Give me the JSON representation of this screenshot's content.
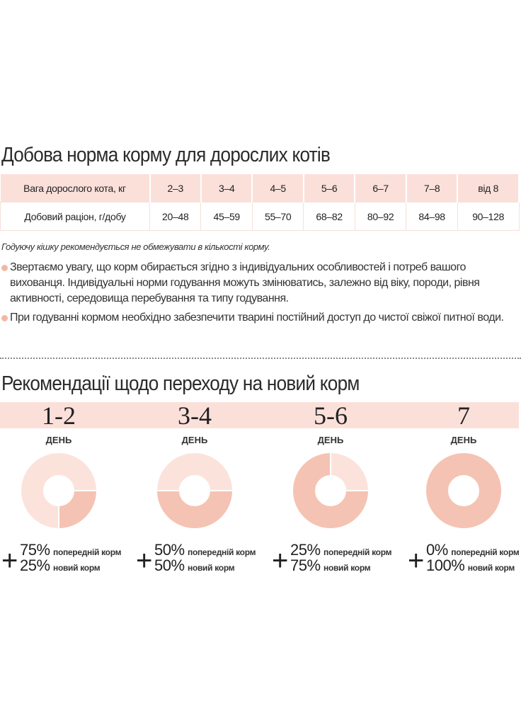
{
  "section1": {
    "title": "Добова норма корму для дорослих котів",
    "table": {
      "row_header_weight": "Вага дорослого кота, кг",
      "row_header_ration": "Добовий раціон, г/добу",
      "weights": [
        "2–3",
        "3–4",
        "4–5",
        "5–6",
        "6–7",
        "7–8",
        "від 8"
      ],
      "rations": [
        "20–48",
        "45–59",
        "55–70",
        "68–82",
        "80–92",
        "84–98",
        "90–128"
      ]
    },
    "note": "Годуючу кішку рекомендується не обмежувати в кількості корму.",
    "bullets": [
      "Звертаємо увагу, що корм обирається згідно з індивідуальних особливостей і потреб вашого вихованця. Індивідуальні норми годування можуть змінюватись, залежно від віку, породи, рівня активності, середовища перебування та типу годування.",
      "При годуванні кормом необхідно забезпечити тварині постійний доступ до чистої свіжої питної води."
    ]
  },
  "section2": {
    "title": "Рекомендації щодо переходу на новий корм",
    "day_label": "ДЕНЬ",
    "prev_label": "попередній корм",
    "new_label": "новий корм",
    "colors": {
      "previous": "#fbe3dc",
      "new": "#f5c3b3",
      "band": "#fbe0da"
    },
    "steps": [
      {
        "days": "1-2",
        "prev": "75%",
        "new": "25%",
        "new_value": 25
      },
      {
        "days": "3-4",
        "prev": "50%",
        "new": "50%",
        "new_value": 50
      },
      {
        "days": "5-6",
        "prev": "25%",
        "new": "75%",
        "new_value": 75
      },
      {
        "days": "7",
        "prev": "0%",
        "new": "100%",
        "new_value": 100
      }
    ]
  }
}
